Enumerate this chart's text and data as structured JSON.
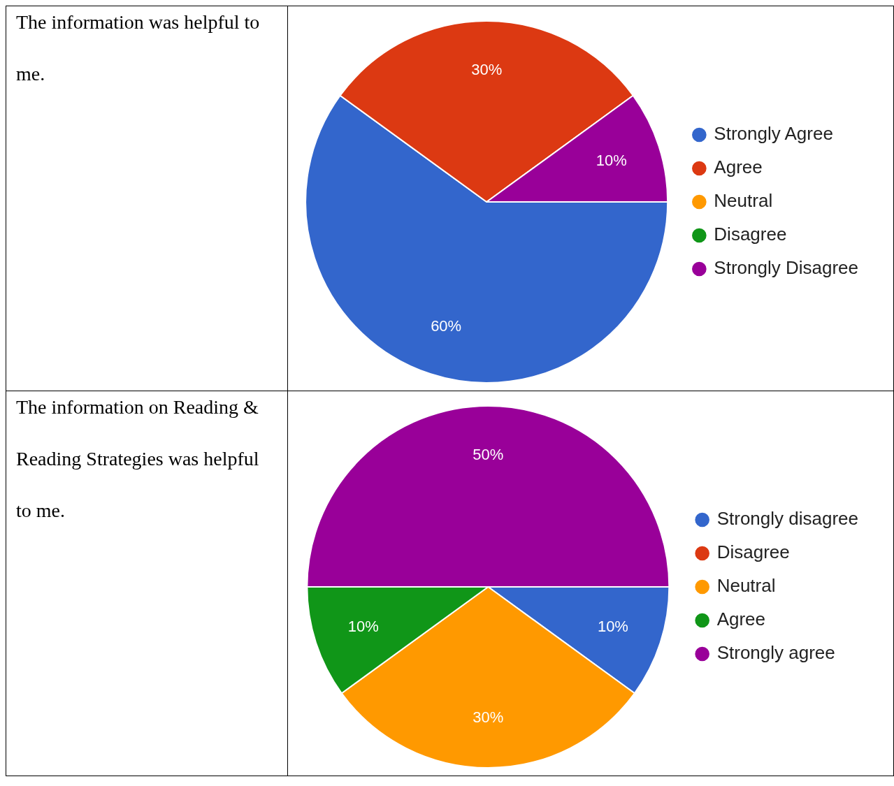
{
  "chart_data": [
    {
      "type": "pie",
      "title": "The information was helpful to me.",
      "categories": [
        "Strongly Agree",
        "Agree",
        "Neutral",
        "Disagree",
        "Strongly Disagree"
      ],
      "values": [
        60,
        30,
        0,
        0,
        10
      ],
      "colors": [
        "#3366cc",
        "#dc3912",
        "#ff9900",
        "#109618",
        "#990099"
      ],
      "value_labels": [
        "60%",
        "30%",
        null,
        null,
        "10%"
      ],
      "legend": "right"
    },
    {
      "type": "pie",
      "title": "The information on Reading & Reading Strategies was helpful to me.",
      "categories": [
        "Strongly disagree",
        "Disagree",
        "Neutral",
        "Agree",
        "Strongly agree"
      ],
      "values": [
        10,
        0,
        30,
        10,
        50
      ],
      "colors": [
        "#3366cc",
        "#dc3912",
        "#ff9900",
        "#109618",
        "#990099"
      ],
      "value_labels": [
        "10%",
        null,
        "30%",
        "10%",
        "50%"
      ],
      "legend": "right"
    }
  ]
}
